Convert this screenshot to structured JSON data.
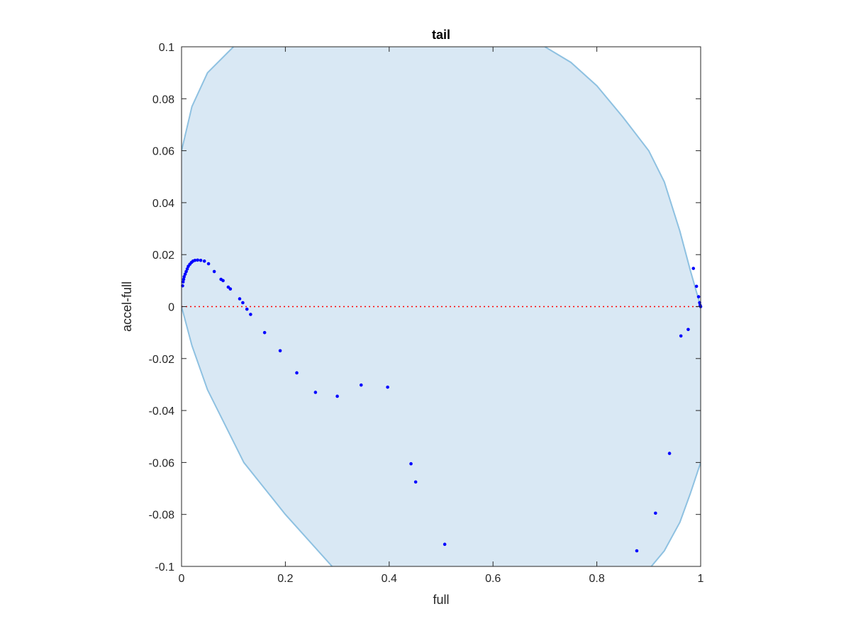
{
  "chart_data": {
    "type": "scatter",
    "title": "tail",
    "xlabel": "full",
    "ylabel": "accel-full",
    "xlim": [
      0,
      1
    ],
    "ylim": [
      -0.1,
      0.1
    ],
    "x_ticks": [
      {
        "value": 0,
        "label": "0"
      },
      {
        "value": 0.2,
        "label": "0.2"
      },
      {
        "value": 0.4,
        "label": "0.4"
      },
      {
        "value": 0.6,
        "label": "0.6"
      },
      {
        "value": 0.8,
        "label": "0.8"
      },
      {
        "value": 1,
        "label": "1"
      }
    ],
    "y_ticks": [
      {
        "value": -0.1,
        "label": "-0.1"
      },
      {
        "value": -0.08,
        "label": "-0.08"
      },
      {
        "value": -0.06,
        "label": "-0.06"
      },
      {
        "value": -0.04,
        "label": "-0.04"
      },
      {
        "value": -0.02,
        "label": "-0.02"
      },
      {
        "value": 0,
        "label": "0"
      },
      {
        "value": 0.02,
        "label": "0.02"
      },
      {
        "value": 0.04,
        "label": "0.04"
      },
      {
        "value": 0.06,
        "label": "0.06"
      },
      {
        "value": 0.08,
        "label": "0.08"
      },
      {
        "value": 0.1,
        "label": "0.1"
      }
    ],
    "grid": false,
    "reference_line": {
      "y": 0,
      "style": "dotted",
      "color": "#ff0000"
    },
    "region": {
      "fill": "#d9e8f4",
      "stroke": "#8ec1e1",
      "boundary": [
        [
          0,
          0.06
        ],
        [
          0.02,
          0.077
        ],
        [
          0.05,
          0.09
        ],
        [
          0.1,
          0.1
        ],
        [
          0.7,
          0.1
        ],
        [
          0.75,
          0.094
        ],
        [
          0.8,
          0.085
        ],
        [
          0.85,
          0.073
        ],
        [
          0.9,
          0.06
        ],
        [
          0.93,
          0.048
        ],
        [
          0.96,
          0.029
        ],
        [
          0.98,
          0.014
        ],
        [
          1,
          0
        ],
        [
          1,
          -0.06
        ],
        [
          0.98,
          -0.072
        ],
        [
          0.96,
          -0.083
        ],
        [
          0.93,
          -0.094
        ],
        [
          0.905,
          -0.1
        ],
        [
          0.29,
          -0.1
        ],
        [
          0.2,
          -0.08
        ],
        [
          0.12,
          -0.06
        ],
        [
          0.05,
          -0.032
        ],
        [
          0.02,
          -0.015
        ],
        [
          0,
          0
        ]
      ]
    },
    "series": [
      {
        "color": "#0000ff",
        "points": [
          [
            0.002,
            0.008
          ],
          [
            0.003,
            0.0095
          ],
          [
            0.004,
            0.0105
          ],
          [
            0.005,
            0.0115
          ],
          [
            0.007,
            0.0125
          ],
          [
            0.009,
            0.0135
          ],
          [
            0.011,
            0.0145
          ],
          [
            0.013,
            0.0155
          ],
          [
            0.016,
            0.0163
          ],
          [
            0.019,
            0.017
          ],
          [
            0.022,
            0.0175
          ],
          [
            0.026,
            0.0178
          ],
          [
            0.031,
            0.0179
          ],
          [
            0.037,
            0.0178
          ],
          [
            0.044,
            0.0175
          ],
          [
            0.052,
            0.0165
          ],
          [
            0.063,
            0.0135
          ],
          [
            0.076,
            0.0105
          ],
          [
            0.08,
            0.01
          ],
          [
            0.09,
            0.0075
          ],
          [
            0.094,
            0.0068
          ],
          [
            0.112,
            0.003
          ],
          [
            0.118,
            0.0015
          ],
          [
            0.126,
            -0.001
          ],
          [
            0.133,
            -0.003
          ],
          [
            0.16,
            -0.01
          ],
          [
            0.19,
            -0.017
          ],
          [
            0.222,
            -0.0255
          ],
          [
            0.258,
            -0.033
          ],
          [
            0.3,
            -0.0345
          ],
          [
            0.346,
            -0.0302
          ],
          [
            0.397,
            -0.031
          ],
          [
            0.442,
            -0.0605
          ],
          [
            0.451,
            -0.0675
          ],
          [
            0.507,
            -0.0915
          ],
          [
            0.877,
            -0.094
          ],
          [
            0.913,
            -0.0795
          ],
          [
            0.94,
            -0.0565
          ],
          [
            0.962,
            -0.0113
          ],
          [
            0.976,
            -0.0088
          ],
          [
            0.986,
            0.0147
          ],
          [
            0.992,
            0.0078
          ],
          [
            0.996,
            0.0038
          ],
          [
            0.998,
            0.0015
          ],
          [
            0.999,
            0.0005
          ],
          [
            1.0,
            0.0
          ]
        ]
      }
    ]
  }
}
